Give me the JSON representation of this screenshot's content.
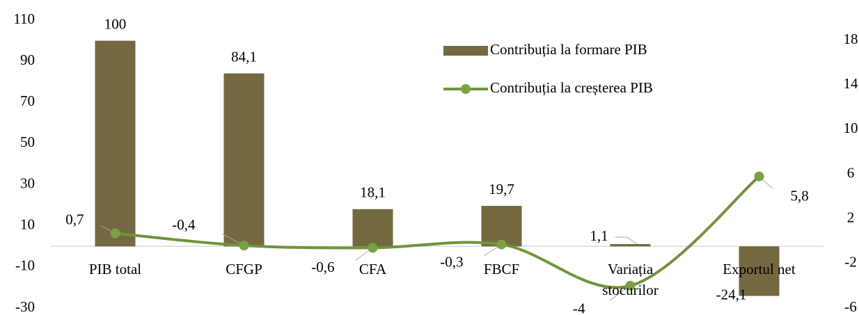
{
  "chart_data": {
    "type": "combo",
    "categories": [
      "PIB total",
      "CFGP",
      "CFA",
      "FBCF",
      "Variația stocurilor",
      "Exportul net"
    ],
    "series": [
      {
        "name": "Contribuția la formare PIB",
        "type": "bar",
        "axis": "y",
        "color": "#746841",
        "values": [
          100,
          84.1,
          18.1,
          19.7,
          1.1,
          -24.1
        ],
        "value_labels": [
          "100",
          "84,1",
          "18,1",
          "19,7",
          "1,1",
          "-24,1"
        ]
      },
      {
        "name": "Contribuția la creșterea PIB",
        "type": "line",
        "axis": "y2",
        "color": "#70943a",
        "values": [
          0.7,
          -0.4,
          -0.6,
          -0.3,
          -4,
          5.8
        ],
        "value_labels": [
          "0,7",
          "-0,4",
          "-0,6",
          "-0,3",
          "-4",
          "5,8"
        ]
      }
    ],
    "ylim": [
      -30,
      110
    ],
    "yticks": [
      -30,
      -10,
      10,
      30,
      50,
      70,
      90,
      110
    ],
    "y2lim": [
      -6,
      18
    ],
    "y2ticks": [
      -6,
      -2,
      2,
      6,
      10,
      14,
      18
    ]
  }
}
